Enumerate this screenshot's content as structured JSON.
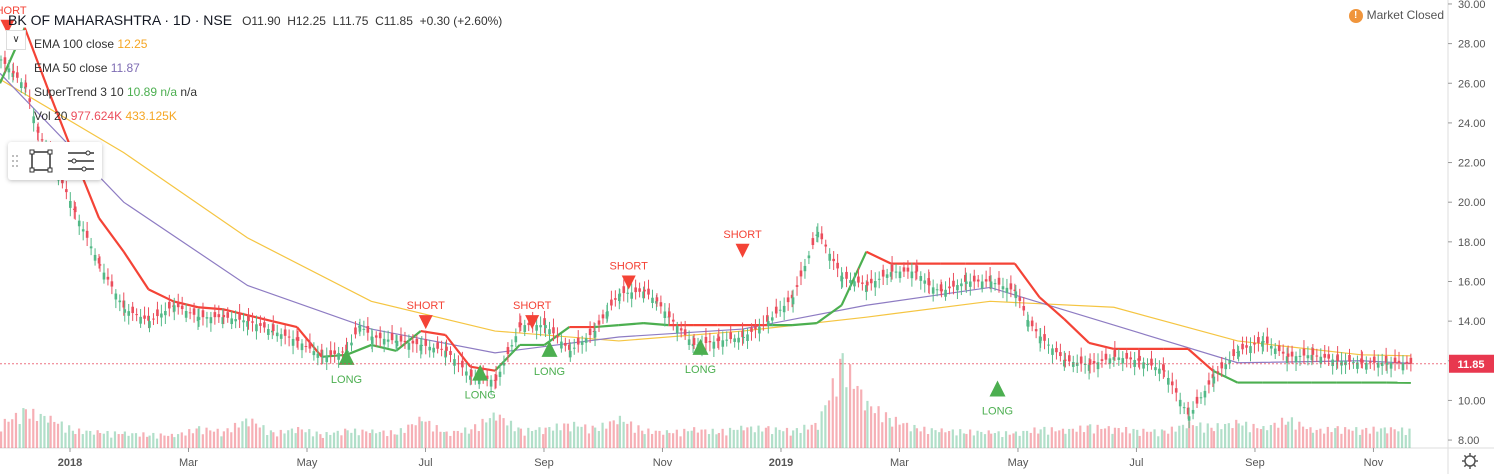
{
  "header": {
    "symbol": "BK OF MAHARASHTRA · 1D · NSE",
    "open": "O11.90",
    "high": "H12.25",
    "low": "L11.75",
    "close": "C11.85",
    "change": "+0.30 (+2.60%)"
  },
  "legend": {
    "ema100_label": "EMA 100 close",
    "ema100_value": "12.25",
    "ema50_label": "EMA 50 close",
    "ema50_value": "11.87",
    "supertrend_label": "SuperTrend 3 10",
    "supertrend_value": "10.89",
    "supertrend_na1": "n/a",
    "supertrend_na2": "n/a",
    "vol_label": "Vol 20",
    "vol_value1": "977.624K",
    "vol_value2": "433.125K"
  },
  "status": {
    "market_text": "Market Closed",
    "icon": "!"
  },
  "colors": {
    "up": "#53b987",
    "down": "#eb4d5c",
    "ema100": "#f5c542",
    "ema50": "#8e7cc3",
    "st_up": "#4caf50",
    "st_down": "#f44336",
    "price_tag": "#e8384f"
  },
  "chart_data": {
    "type": "line",
    "price_axis": {
      "ticks": [
        "30.00",
        "28.00",
        "26.00",
        "24.00",
        "22.00",
        "20.00",
        "18.00",
        "16.00",
        "14.00",
        "12.00",
        "10.00",
        "8.00"
      ],
      "ylim": [
        7.6,
        30.2
      ]
    },
    "time_axis": {
      "labels": [
        "2018",
        "Mar",
        "May",
        "Jul",
        "Sep",
        "Nov",
        "2019",
        "Mar",
        "May",
        "Jul",
        "Sep",
        "Nov"
      ]
    },
    "last_price_label": "11.85",
    "series": [
      {
        "name": "Close",
        "x": [
          0,
          5,
          10,
          15,
          20,
          30,
          40,
          50,
          60,
          70,
          80,
          90,
          100,
          110,
          120,
          130,
          140,
          145,
          150,
          160,
          170,
          180,
          190,
          200,
          210,
          220,
          230,
          240,
          245,
          250,
          260,
          265,
          270,
          280,
          290,
          300,
          310,
          320,
          330,
          340,
          350,
          360,
          370,
          375,
          380,
          390,
          400,
          410,
          415,
          420,
          430,
          440,
          450,
          460,
          470,
          480,
          490,
          500,
          510,
          520,
          530,
          540,
          550,
          560,
          570
        ],
        "values": [
          27.2,
          26.5,
          25.8,
          23.5,
          22.3,
          19.5,
          16.8,
          14.6,
          14.0,
          14.8,
          14.2,
          14.2,
          14.0,
          13.5,
          13.0,
          12.2,
          12.5,
          13.8,
          13.2,
          13.0,
          12.8,
          12.5,
          11.2,
          11.0,
          13.8,
          13.8,
          12.5,
          13.5,
          14.5,
          15.4,
          15.5,
          15.0,
          14.2,
          12.8,
          13.0,
          13.2,
          14.0,
          15.2,
          18.5,
          16.2,
          15.8,
          16.5,
          16.5,
          15.8,
          15.5,
          16.0,
          16.0,
          15.5,
          14.0,
          13.2,
          12.0,
          11.8,
          12.2,
          12.0,
          11.5,
          9.2,
          11.2,
          12.5,
          13.0,
          12.2,
          12.3,
          12.0,
          11.9,
          11.9,
          11.85
        ]
      },
      {
        "name": "EMA 100 close",
        "x": [
          0,
          50,
          100,
          150,
          200,
          250,
          300,
          350,
          400,
          450,
          500,
          550,
          570
        ],
        "values": [
          26.2,
          22.5,
          18.2,
          15.0,
          13.5,
          13.0,
          13.5,
          14.2,
          15.0,
          14.7,
          13.0,
          12.3,
          12.25
        ]
      },
      {
        "name": "EMA 50 close",
        "x": [
          0,
          50,
          100,
          150,
          200,
          250,
          300,
          350,
          400,
          450,
          500,
          550,
          570
        ],
        "values": [
          26.5,
          20.0,
          15.8,
          13.6,
          12.4,
          13.2,
          13.6,
          14.8,
          15.7,
          13.8,
          11.9,
          12.0,
          11.87
        ]
      },
      {
        "name": "SuperTrend 3 10",
        "x": [
          0,
          10,
          20,
          30,
          40,
          50,
          60,
          70,
          80,
          90,
          100,
          110,
          120,
          130,
          140,
          150,
          160,
          170,
          180,
          190,
          200,
          210,
          220,
          230,
          240,
          250,
          260,
          270,
          280,
          290,
          300,
          310,
          320,
          330,
          340,
          350,
          360,
          370,
          380,
          390,
          400,
          410,
          420,
          430,
          440,
          450,
          460,
          470,
          480,
          490,
          500,
          510,
          520,
          530,
          540,
          550,
          560,
          570
        ],
        "values": [
          26.0,
          28.8,
          25.5,
          22.3,
          19.2,
          17.5,
          15.6,
          15.0,
          14.7,
          14.6,
          14.3,
          14.0,
          13.7,
          12.2,
          12.3,
          12.8,
          12.5,
          13.5,
          13.3,
          11.7,
          11.5,
          12.8,
          12.8,
          13.7,
          13.7,
          13.8,
          13.9,
          13.8,
          13.8,
          13.8,
          13.8,
          13.8,
          13.8,
          13.9,
          14.8,
          17.5,
          16.9,
          16.9,
          16.9,
          16.9,
          16.9,
          16.9,
          15.2,
          14.1,
          12.9,
          12.6,
          12.6,
          12.6,
          12.6,
          11.5,
          10.9,
          10.9,
          10.9,
          10.9,
          10.9,
          10.9,
          10.9,
          10.89
        ]
      },
      {
        "name": "Vol 20",
        "x": [
          0,
          10,
          20,
          30,
          40,
          50,
          60,
          70,
          80,
          90,
          100,
          110,
          120,
          130,
          140,
          150,
          160,
          170,
          180,
          190,
          200,
          210,
          220,
          230,
          240,
          250,
          260,
          270,
          280,
          290,
          300,
          310,
          320,
          330,
          340,
          350,
          360,
          370,
          380,
          390,
          400,
          410,
          420,
          430,
          440,
          450,
          460,
          470,
          480,
          490,
          500,
          510,
          520,
          530,
          540,
          550,
          560,
          570
        ],
        "values": [
          250,
          380,
          300,
          180,
          160,
          150,
          140,
          130,
          200,
          170,
          300,
          150,
          200,
          140,
          180,
          170,
          160,
          300,
          150,
          200,
          350,
          180,
          200,
          250,
          200,
          300,
          180,
          160,
          190,
          170,
          210,
          200,
          180,
          250,
          900,
          450,
          300,
          200,
          180,
          170,
          160,
          150,
          200,
          180,
          220,
          200,
          180,
          170,
          250,
          220,
          260,
          200,
          300,
          180,
          200,
          190,
          200,
          180
        ]
      }
    ],
    "signals": [
      {
        "type": "SHORT",
        "x": 3,
        "y": 28.8
      },
      {
        "type": "SHORT",
        "x": 172,
        "y": 13.9
      },
      {
        "type": "LONG",
        "x": 140,
        "y": 12.2
      },
      {
        "type": "LONG",
        "x": 194,
        "y": 11.4
      },
      {
        "type": "SHORT",
        "x": 215,
        "y": 13.9
      },
      {
        "type": "LONG",
        "x": 222,
        "y": 12.6
      },
      {
        "type": "SHORT",
        "x": 254,
        "y": 15.9
      },
      {
        "type": "LONG",
        "x": 283,
        "y": 12.7
      },
      {
        "type": "SHORT",
        "x": 300,
        "y": 17.5
      },
      {
        "type": "LONG",
        "x": 403,
        "y": 10.6
      }
    ],
    "ylabel": ""
  }
}
